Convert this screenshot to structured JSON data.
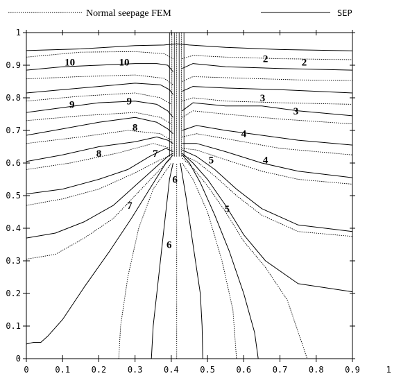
{
  "chart_data": {
    "type": "line",
    "title": "",
    "xlabel": "",
    "ylabel": "",
    "xlim": [
      0,
      0.9
    ],
    "ylim": [
      0,
      1
    ],
    "x_ticks": [
      "0",
      "0.1",
      "0.2",
      "0.3",
      "0.4",
      "0.5",
      "0.6",
      "0.7",
      "0.8",
      "0.9",
      "1"
    ],
    "y_ticks": [
      "0",
      "0.1",
      "0.2",
      "0.3",
      "0.4",
      "0.5",
      "0.6",
      "0.7",
      "0.8",
      "0.9",
      "1"
    ],
    "legend": {
      "placement": "top",
      "entries": [
        {
          "label": "Normal seepage FEM",
          "style": "dotted"
        },
        {
          "label": "SEP",
          "style": "solid"
        }
      ]
    },
    "contour_labels": [
      {
        "text": "10",
        "x": 0.12,
        "y": 0.91
      },
      {
        "text": "10",
        "x": 0.27,
        "y": 0.91
      },
      {
        "text": "9",
        "x": 0.126,
        "y": 0.78
      },
      {
        "text": "9",
        "x": 0.284,
        "y": 0.79
      },
      {
        "text": "8",
        "x": 0.2,
        "y": 0.63
      },
      {
        "text": "8",
        "x": 0.3,
        "y": 0.71
      },
      {
        "text": "7",
        "x": 0.285,
        "y": 0.47
      },
      {
        "text": "7",
        "x": 0.356,
        "y": 0.63
      },
      {
        "text": "6",
        "x": 0.41,
        "y": 0.55
      },
      {
        "text": "6",
        "x": 0.394,
        "y": 0.35
      },
      {
        "text": "5",
        "x": 0.51,
        "y": 0.61
      },
      {
        "text": "5",
        "x": 0.554,
        "y": 0.46
      },
      {
        "text": "4",
        "x": 0.6,
        "y": 0.69
      },
      {
        "text": "4",
        "x": 0.66,
        "y": 0.61
      },
      {
        "text": "3",
        "x": 0.652,
        "y": 0.8
      },
      {
        "text": "3",
        "x": 0.744,
        "y": 0.76
      },
      {
        "text": "2",
        "x": 0.66,
        "y": 0.92
      },
      {
        "text": "2",
        "x": 0.767,
        "y": 0.91
      }
    ],
    "series": [
      {
        "style": "solid",
        "points": [
          [
            0,
            0.945
          ],
          [
            0.15,
            0.95
          ],
          [
            0.3,
            0.96
          ],
          [
            0.38,
            0.962
          ],
          [
            0.41,
            0.965
          ],
          [
            0.42,
            0.965
          ],
          [
            0.45,
            0.962
          ],
          [
            0.55,
            0.955
          ],
          [
            0.7,
            0.948
          ],
          [
            0.9,
            0.944
          ]
        ]
      },
      {
        "style": "dotted",
        "points": [
          [
            0,
            0.925
          ],
          [
            0.15,
            0.94
          ],
          [
            0.3,
            0.942
          ],
          [
            0.38,
            0.935
          ],
          [
            0.405,
            0.92
          ]
        ]
      },
      {
        "style": "dotted",
        "points": [
          [
            0.43,
            0.92
          ],
          [
            0.46,
            0.93
          ],
          [
            0.55,
            0.925
          ],
          [
            0.7,
            0.92
          ],
          [
            0.9,
            0.917
          ]
        ]
      },
      {
        "style": "solid",
        "points": [
          [
            0,
            0.885
          ],
          [
            0.1,
            0.895
          ],
          [
            0.2,
            0.9
          ],
          [
            0.3,
            0.905
          ],
          [
            0.36,
            0.905
          ],
          [
            0.39,
            0.9
          ],
          [
            0.405,
            0.88
          ]
        ]
      },
      {
        "style": "solid",
        "points": [
          [
            0.43,
            0.89
          ],
          [
            0.46,
            0.905
          ],
          [
            0.55,
            0.895
          ],
          [
            0.7,
            0.89
          ],
          [
            0.9,
            0.885
          ]
        ]
      },
      {
        "style": "dotted",
        "points": [
          [
            0,
            0.858
          ],
          [
            0.15,
            0.865
          ],
          [
            0.3,
            0.87
          ],
          [
            0.38,
            0.86
          ],
          [
            0.405,
            0.84
          ]
        ]
      },
      {
        "style": "dotted",
        "points": [
          [
            0.43,
            0.85
          ],
          [
            0.46,
            0.865
          ],
          [
            0.6,
            0.86
          ],
          [
            0.75,
            0.855
          ],
          [
            0.9,
            0.853
          ]
        ]
      },
      {
        "style": "solid",
        "points": [
          [
            0,
            0.815
          ],
          [
            0.1,
            0.825
          ],
          [
            0.2,
            0.835
          ],
          [
            0.3,
            0.845
          ],
          [
            0.37,
            0.84
          ],
          [
            0.395,
            0.825
          ],
          [
            0.405,
            0.81
          ]
        ]
      },
      {
        "style": "solid",
        "points": [
          [
            0.43,
            0.82
          ],
          [
            0.46,
            0.835
          ],
          [
            0.55,
            0.83
          ],
          [
            0.7,
            0.825
          ],
          [
            0.9,
            0.815
          ]
        ]
      },
      {
        "style": "dotted",
        "points": [
          [
            0,
            0.79
          ],
          [
            0.15,
            0.805
          ],
          [
            0.3,
            0.815
          ],
          [
            0.37,
            0.8
          ],
          [
            0.4,
            0.78
          ]
        ]
      },
      {
        "style": "dotted",
        "points": [
          [
            0.43,
            0.79
          ],
          [
            0.46,
            0.8
          ],
          [
            0.55,
            0.79
          ],
          [
            0.7,
            0.785
          ],
          [
            0.9,
            0.78
          ]
        ]
      },
      {
        "style": "solid",
        "points": [
          [
            0,
            0.755
          ],
          [
            0.1,
            0.77
          ],
          [
            0.2,
            0.785
          ],
          [
            0.3,
            0.79
          ],
          [
            0.36,
            0.78
          ],
          [
            0.39,
            0.76
          ],
          [
            0.405,
            0.74
          ]
        ]
      },
      {
        "style": "solid",
        "points": [
          [
            0.43,
            0.76
          ],
          [
            0.46,
            0.785
          ],
          [
            0.55,
            0.775
          ],
          [
            0.65,
            0.775
          ],
          [
            0.75,
            0.76
          ],
          [
            0.9,
            0.745
          ]
        ]
      },
      {
        "style": "dotted",
        "points": [
          [
            0,
            0.73
          ],
          [
            0.15,
            0.745
          ],
          [
            0.3,
            0.755
          ],
          [
            0.37,
            0.74
          ],
          [
            0.4,
            0.72
          ]
        ]
      },
      {
        "style": "dotted",
        "points": [
          [
            0.43,
            0.74
          ],
          [
            0.46,
            0.76
          ],
          [
            0.55,
            0.75
          ],
          [
            0.7,
            0.735
          ],
          [
            0.9,
            0.72
          ]
        ]
      },
      {
        "style": "solid",
        "points": [
          [
            0,
            0.685
          ],
          [
            0.1,
            0.705
          ],
          [
            0.2,
            0.725
          ],
          [
            0.3,
            0.74
          ],
          [
            0.36,
            0.725
          ],
          [
            0.39,
            0.705
          ],
          [
            0.405,
            0.69
          ]
        ]
      },
      {
        "style": "solid",
        "points": [
          [
            0.43,
            0.7
          ],
          [
            0.47,
            0.715
          ],
          [
            0.55,
            0.7
          ],
          [
            0.65,
            0.685
          ],
          [
            0.75,
            0.67
          ],
          [
            0.9,
            0.655
          ]
        ]
      },
      {
        "style": "dotted",
        "points": [
          [
            0,
            0.66
          ],
          [
            0.15,
            0.68
          ],
          [
            0.28,
            0.7
          ],
          [
            0.37,
            0.69
          ],
          [
            0.4,
            0.67
          ]
        ]
      },
      {
        "style": "dotted",
        "points": [
          [
            0.43,
            0.68
          ],
          [
            0.47,
            0.69
          ],
          [
            0.55,
            0.675
          ],
          [
            0.7,
            0.645
          ],
          [
            0.9,
            0.625
          ]
        ]
      },
      {
        "style": "solid",
        "points": [
          [
            0,
            0.605
          ],
          [
            0.1,
            0.625
          ],
          [
            0.2,
            0.65
          ],
          [
            0.3,
            0.665
          ],
          [
            0.36,
            0.68
          ],
          [
            0.39,
            0.67
          ],
          [
            0.405,
            0.66
          ]
        ]
      },
      {
        "style": "solid",
        "points": [
          [
            0.43,
            0.66
          ],
          [
            0.47,
            0.66
          ],
          [
            0.55,
            0.635
          ],
          [
            0.65,
            0.6
          ],
          [
            0.75,
            0.575
          ],
          [
            0.9,
            0.555
          ]
        ]
      },
      {
        "style": "dotted",
        "points": [
          [
            0,
            0.58
          ],
          [
            0.12,
            0.6
          ],
          [
            0.25,
            0.63
          ],
          [
            0.35,
            0.66
          ],
          [
            0.4,
            0.645
          ]
        ]
      },
      {
        "style": "dotted",
        "points": [
          [
            0.43,
            0.645
          ],
          [
            0.47,
            0.64
          ],
          [
            0.55,
            0.61
          ],
          [
            0.65,
            0.575
          ],
          [
            0.75,
            0.55
          ],
          [
            0.9,
            0.535
          ]
        ]
      },
      {
        "style": "solid",
        "points": [
          [
            0,
            0.505
          ],
          [
            0.1,
            0.52
          ],
          [
            0.2,
            0.55
          ],
          [
            0.28,
            0.58
          ],
          [
            0.34,
            0.62
          ],
          [
            0.385,
            0.645
          ],
          [
            0.405,
            0.635
          ]
        ]
      },
      {
        "style": "solid",
        "points": [
          [
            0.43,
            0.64
          ],
          [
            0.47,
            0.62
          ],
          [
            0.52,
            0.58
          ],
          [
            0.58,
            0.52
          ],
          [
            0.65,
            0.46
          ],
          [
            0.75,
            0.41
          ],
          [
            0.9,
            0.39
          ]
        ]
      },
      {
        "style": "dotted",
        "points": [
          [
            0,
            0.47
          ],
          [
            0.1,
            0.49
          ],
          [
            0.2,
            0.52
          ],
          [
            0.3,
            0.57
          ],
          [
            0.37,
            0.61
          ],
          [
            0.4,
            0.625
          ]
        ]
      },
      {
        "style": "dotted",
        "points": [
          [
            0.43,
            0.625
          ],
          [
            0.47,
            0.605
          ],
          [
            0.52,
            0.56
          ],
          [
            0.58,
            0.5
          ],
          [
            0.65,
            0.44
          ],
          [
            0.75,
            0.39
          ],
          [
            0.9,
            0.375
          ]
        ]
      },
      {
        "style": "solid",
        "points": [
          [
            0,
            0.37
          ],
          [
            0.08,
            0.385
          ],
          [
            0.16,
            0.42
          ],
          [
            0.24,
            0.47
          ],
          [
            0.3,
            0.53
          ],
          [
            0.36,
            0.59
          ],
          [
            0.39,
            0.62
          ],
          [
            0.405,
            0.63
          ]
        ]
      },
      {
        "style": "solid",
        "points": [
          [
            0.43,
            0.63
          ],
          [
            0.46,
            0.6
          ],
          [
            0.5,
            0.55
          ],
          [
            0.55,
            0.47
          ],
          [
            0.6,
            0.38
          ],
          [
            0.66,
            0.3
          ],
          [
            0.75,
            0.23
          ],
          [
            0.9,
            0.205
          ]
        ]
      },
      {
        "style": "dotted",
        "points": [
          [
            0,
            0.305
          ],
          [
            0.08,
            0.32
          ],
          [
            0.16,
            0.37
          ],
          [
            0.24,
            0.43
          ],
          [
            0.3,
            0.5
          ],
          [
            0.36,
            0.57
          ],
          [
            0.4,
            0.615
          ]
        ]
      },
      {
        "style": "dotted",
        "points": [
          [
            0.43,
            0.615
          ],
          [
            0.46,
            0.585
          ],
          [
            0.5,
            0.53
          ],
          [
            0.55,
            0.45
          ],
          [
            0.6,
            0.36
          ],
          [
            0.66,
            0.28
          ],
          [
            0.72,
            0.18
          ],
          [
            0.76,
            0.05
          ],
          [
            0.775,
            0
          ]
        ]
      },
      {
        "style": "solid",
        "points": [
          [
            0,
            0.045
          ],
          [
            0.02,
            0.05
          ],
          [
            0.04,
            0.05
          ],
          [
            0.06,
            0.07
          ],
          [
            0.1,
            0.12
          ],
          [
            0.16,
            0.22
          ],
          [
            0.23,
            0.33
          ],
          [
            0.29,
            0.43
          ],
          [
            0.34,
            0.52
          ],
          [
            0.385,
            0.6
          ],
          [
            0.405,
            0.625
          ]
        ]
      },
      {
        "style": "solid",
        "points": [
          [
            0.43,
            0.625
          ],
          [
            0.45,
            0.6
          ],
          [
            0.48,
            0.54
          ],
          [
            0.52,
            0.44
          ],
          [
            0.56,
            0.33
          ],
          [
            0.6,
            0.2
          ],
          [
            0.63,
            0.08
          ],
          [
            0.64,
            0
          ]
        ]
      },
      {
        "style": "dotted",
        "points": [
          [
            0.255,
            0
          ],
          [
            0.26,
            0.1
          ],
          [
            0.28,
            0.25
          ],
          [
            0.31,
            0.4
          ],
          [
            0.35,
            0.52
          ],
          [
            0.4,
            0.6
          ]
        ]
      },
      {
        "style": "dotted",
        "points": [
          [
            0.43,
            0.6
          ],
          [
            0.46,
            0.55
          ],
          [
            0.5,
            0.45
          ],
          [
            0.54,
            0.3
          ],
          [
            0.57,
            0.15
          ],
          [
            0.58,
            0
          ]
        ]
      },
      {
        "style": "solid",
        "points": [
          [
            0.345,
            0
          ],
          [
            0.35,
            0.1
          ],
          [
            0.365,
            0.25
          ],
          [
            0.38,
            0.4
          ],
          [
            0.395,
            0.55
          ],
          [
            0.405,
            0.6
          ]
        ]
      },
      {
        "style": "solid",
        "points": [
          [
            0.425,
            0.6
          ],
          [
            0.44,
            0.5
          ],
          [
            0.46,
            0.35
          ],
          [
            0.48,
            0.2
          ],
          [
            0.485,
            0.1
          ],
          [
            0.487,
            0
          ]
        ]
      },
      {
        "style": "dotted",
        "points": [
          [
            0.415,
            0
          ],
          [
            0.415,
            0.35
          ],
          [
            0.415,
            0.6
          ]
        ]
      }
    ],
    "well_bundle": {
      "x_center": 0.415,
      "half_width": 0.02,
      "y_from": 0.62,
      "y_to": 1.0,
      "lines": 7
    }
  }
}
